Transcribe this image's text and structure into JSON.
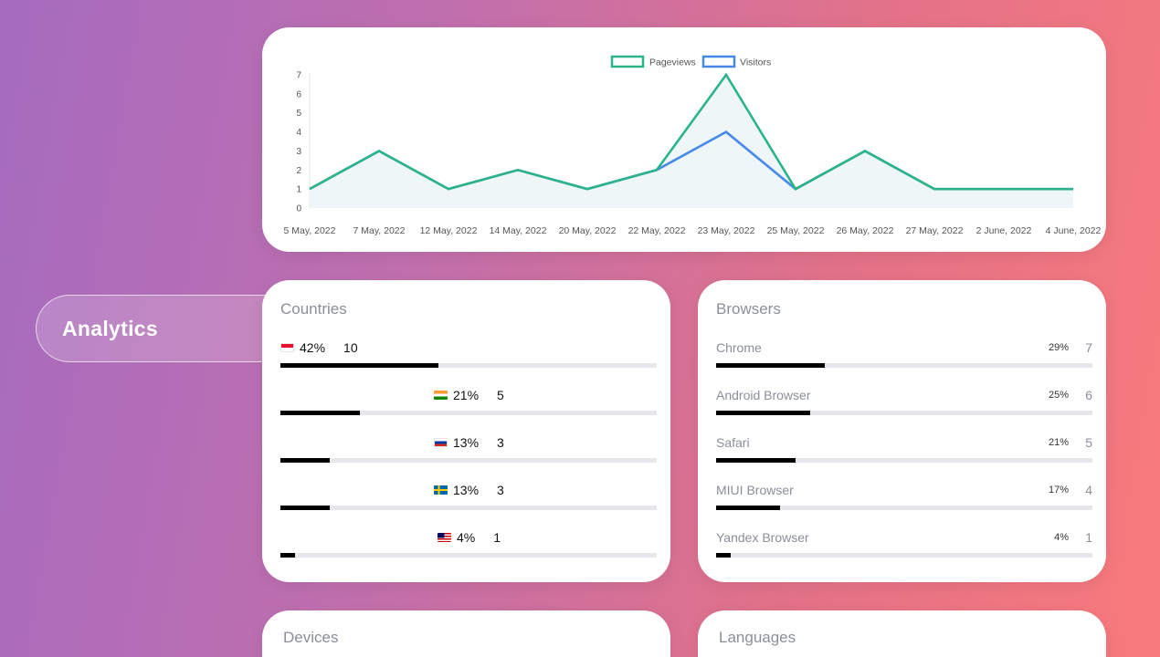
{
  "sidebar": {
    "analytics_label": "Analytics"
  },
  "chart_data": {
    "type": "line",
    "categories": [
      "5 May, 2022",
      "7 May, 2022",
      "12 May, 2022",
      "14 May, 2022",
      "20 May, 2022",
      "22 May, 2022",
      "23 May, 2022",
      "25 May, 2022",
      "26 May, 2022",
      "27 May, 2022",
      "2 June, 2022",
      "4 June, 2022"
    ],
    "series": [
      {
        "name": "Pageviews",
        "values": [
          1,
          3,
          1,
          2,
          1,
          2,
          7,
          1,
          3,
          1,
          1,
          1
        ],
        "color": "#2bb38a"
      },
      {
        "name": "Visitors",
        "values": [
          1,
          3,
          1,
          2,
          1,
          2,
          4,
          1,
          3,
          1,
          1,
          1
        ],
        "color": "#4689e8"
      }
    ],
    "yticks": [
      "0",
      "1",
      "2",
      "3",
      "4",
      "5",
      "6",
      "7"
    ],
    "ylim": [
      0,
      7
    ],
    "legend": "top-center",
    "grid": false,
    "fill_color": "#eef6f8"
  },
  "countries": {
    "title": "Countries",
    "rows": [
      {
        "flag": "ID",
        "pct": "42%",
        "count": "10",
        "value": 0.42
      },
      {
        "flag": "IN",
        "pct": "21%",
        "count": "5",
        "value": 0.21
      },
      {
        "flag": "RU",
        "pct": "13%",
        "count": "3",
        "value": 0.13
      },
      {
        "flag": "SE",
        "pct": "13%",
        "count": "3",
        "value": 0.13
      },
      {
        "flag": "MY",
        "pct": "4%",
        "count": "1",
        "value": 0.04
      }
    ]
  },
  "browsers": {
    "title": "Browsers",
    "rows": [
      {
        "name": "Chrome",
        "pct": "29%",
        "count": "7",
        "value": 0.29
      },
      {
        "name": "Android Browser",
        "pct": "25%",
        "count": "6",
        "value": 0.25
      },
      {
        "name": "Safari",
        "pct": "21%",
        "count": "5",
        "value": 0.21
      },
      {
        "name": "MIUI Browser",
        "pct": "17%",
        "count": "4",
        "value": 0.17
      },
      {
        "name": "Yandex Browser",
        "pct": "4%",
        "count": "1",
        "value": 0.04
      }
    ]
  },
  "devices": {
    "title": "Devices"
  },
  "languages": {
    "title": "Languages"
  }
}
